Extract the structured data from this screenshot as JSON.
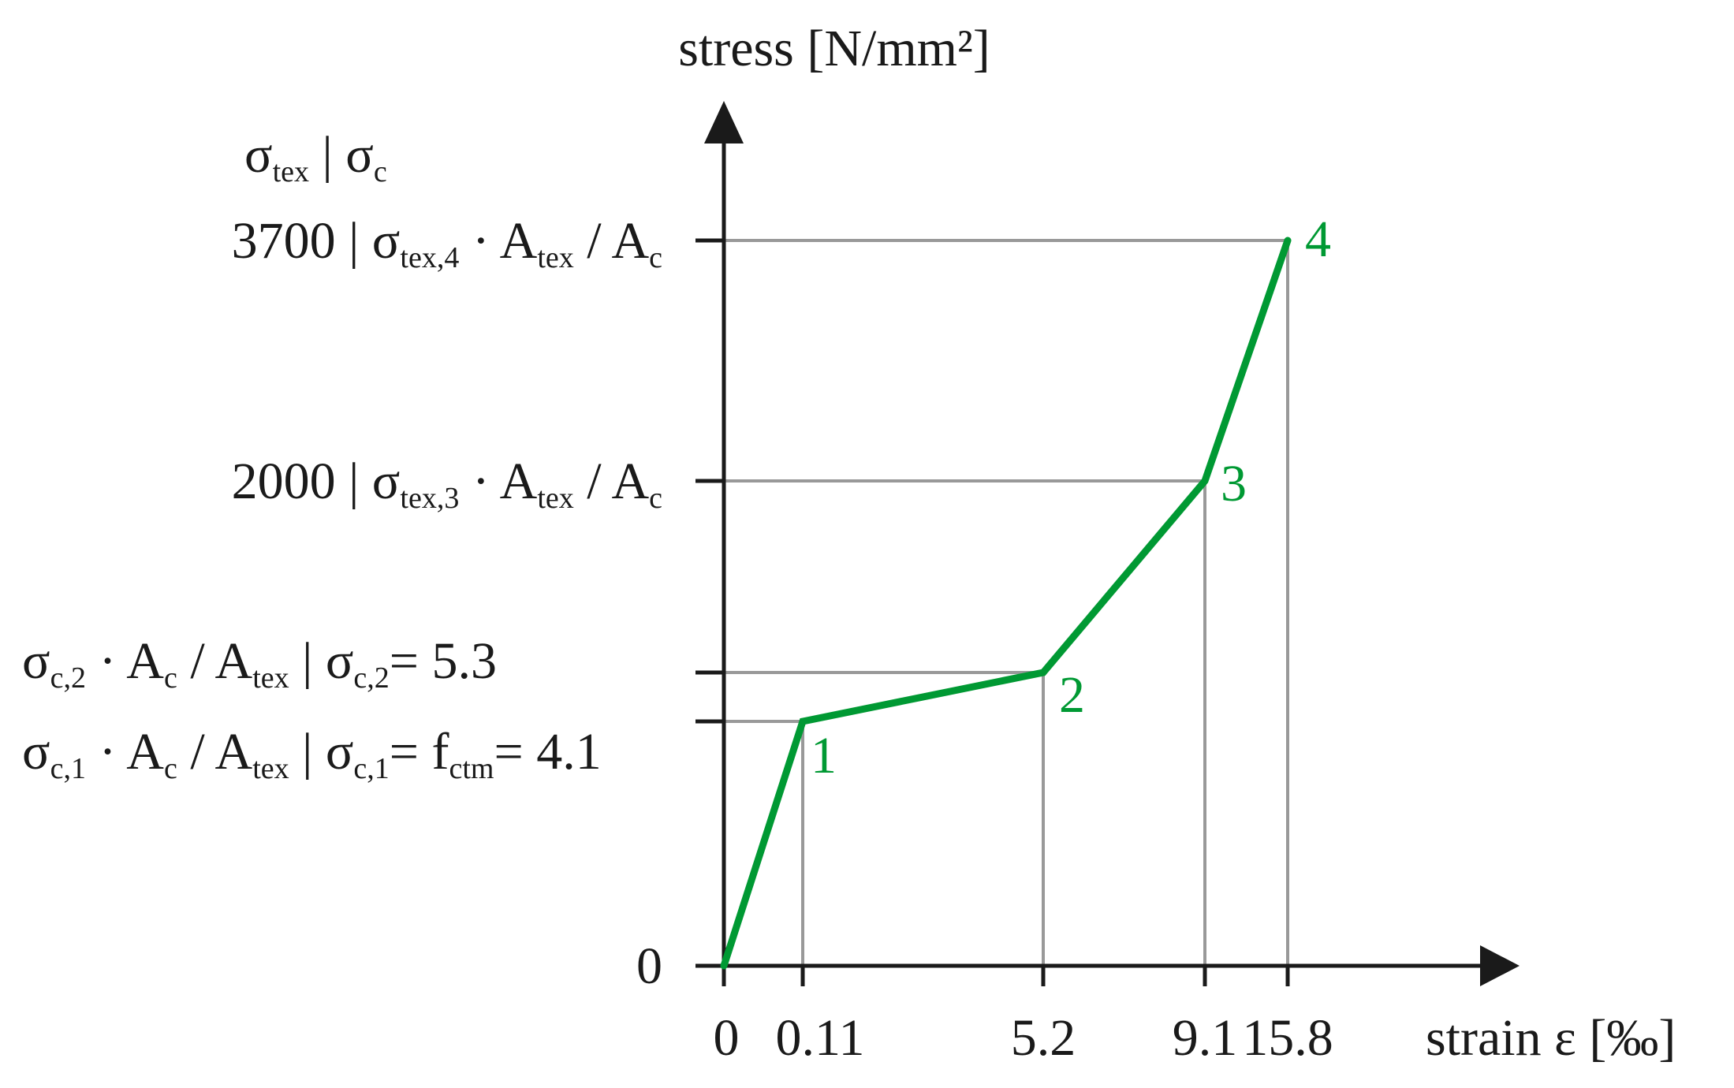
{
  "chart_data": {
    "type": "line",
    "ylabel": "stress [N/mm²]",
    "xlabel": "strain ε [‰]",
    "y_header": [
      {
        "t": "σ"
      },
      {
        "t": "tex",
        "sub": true
      },
      {
        "t": " | σ"
      },
      {
        "t": "c",
        "sub": true
      }
    ],
    "x_ticks": [
      "0",
      "0.11",
      "5.2",
      "9.1",
      "15.8"
    ],
    "y_ticks": [
      {
        "label": [
          {
            "t": "0"
          }
        ]
      },
      {
        "label": [
          {
            "t": "σ"
          },
          {
            "t": "c,1",
            "sub": true
          },
          {
            "t": " · A"
          },
          {
            "t": "c",
            "sub": true
          },
          {
            "t": " / A"
          },
          {
            "t": "tex",
            "sub": true
          },
          {
            "t": " | σ"
          },
          {
            "t": "c,1",
            "sub": true
          },
          {
            "t": "= f"
          },
          {
            "t": "ctm",
            "sub": true
          },
          {
            "t": "= 4.1"
          }
        ]
      },
      {
        "label": [
          {
            "t": "σ"
          },
          {
            "t": "c,2",
            "sub": true
          },
          {
            "t": " · A"
          },
          {
            "t": "c",
            "sub": true
          },
          {
            "t": " / A"
          },
          {
            "t": "tex",
            "sub": true
          },
          {
            "t": " | σ"
          },
          {
            "t": "c,2",
            "sub": true
          },
          {
            "t": "= 5.3"
          }
        ]
      },
      {
        "label": [
          {
            "t": "2000 | σ"
          },
          {
            "t": "tex,3",
            "sub": true
          },
          {
            "t": " · A"
          },
          {
            "t": "tex",
            "sub": true
          },
          {
            "t": " / A"
          },
          {
            "t": "c",
            "sub": true
          }
        ]
      },
      {
        "label": [
          {
            "t": "3700 | σ"
          },
          {
            "t": "tex,4",
            "sub": true
          },
          {
            "t": " · A"
          },
          {
            "t": "tex",
            "sub": true
          },
          {
            "t": " / A"
          },
          {
            "t": "c",
            "sub": true
          }
        ]
      }
    ],
    "points": [
      {
        "label": "",
        "x": 0,
        "y": 0
      },
      {
        "label": "1",
        "x": 0.11,
        "y": 4.1
      },
      {
        "label": "2",
        "x": 5.2,
        "y": 5.3
      },
      {
        "label": "3",
        "x": 9.1,
        "y": 2000
      },
      {
        "label": "4",
        "x": 15.8,
        "y": 3700
      }
    ],
    "scale": "schematic (not to scale)",
    "grid": false,
    "colors": {
      "curve": "#009933",
      "axis": "#1a1a1a",
      "guide": "#999999"
    }
  }
}
